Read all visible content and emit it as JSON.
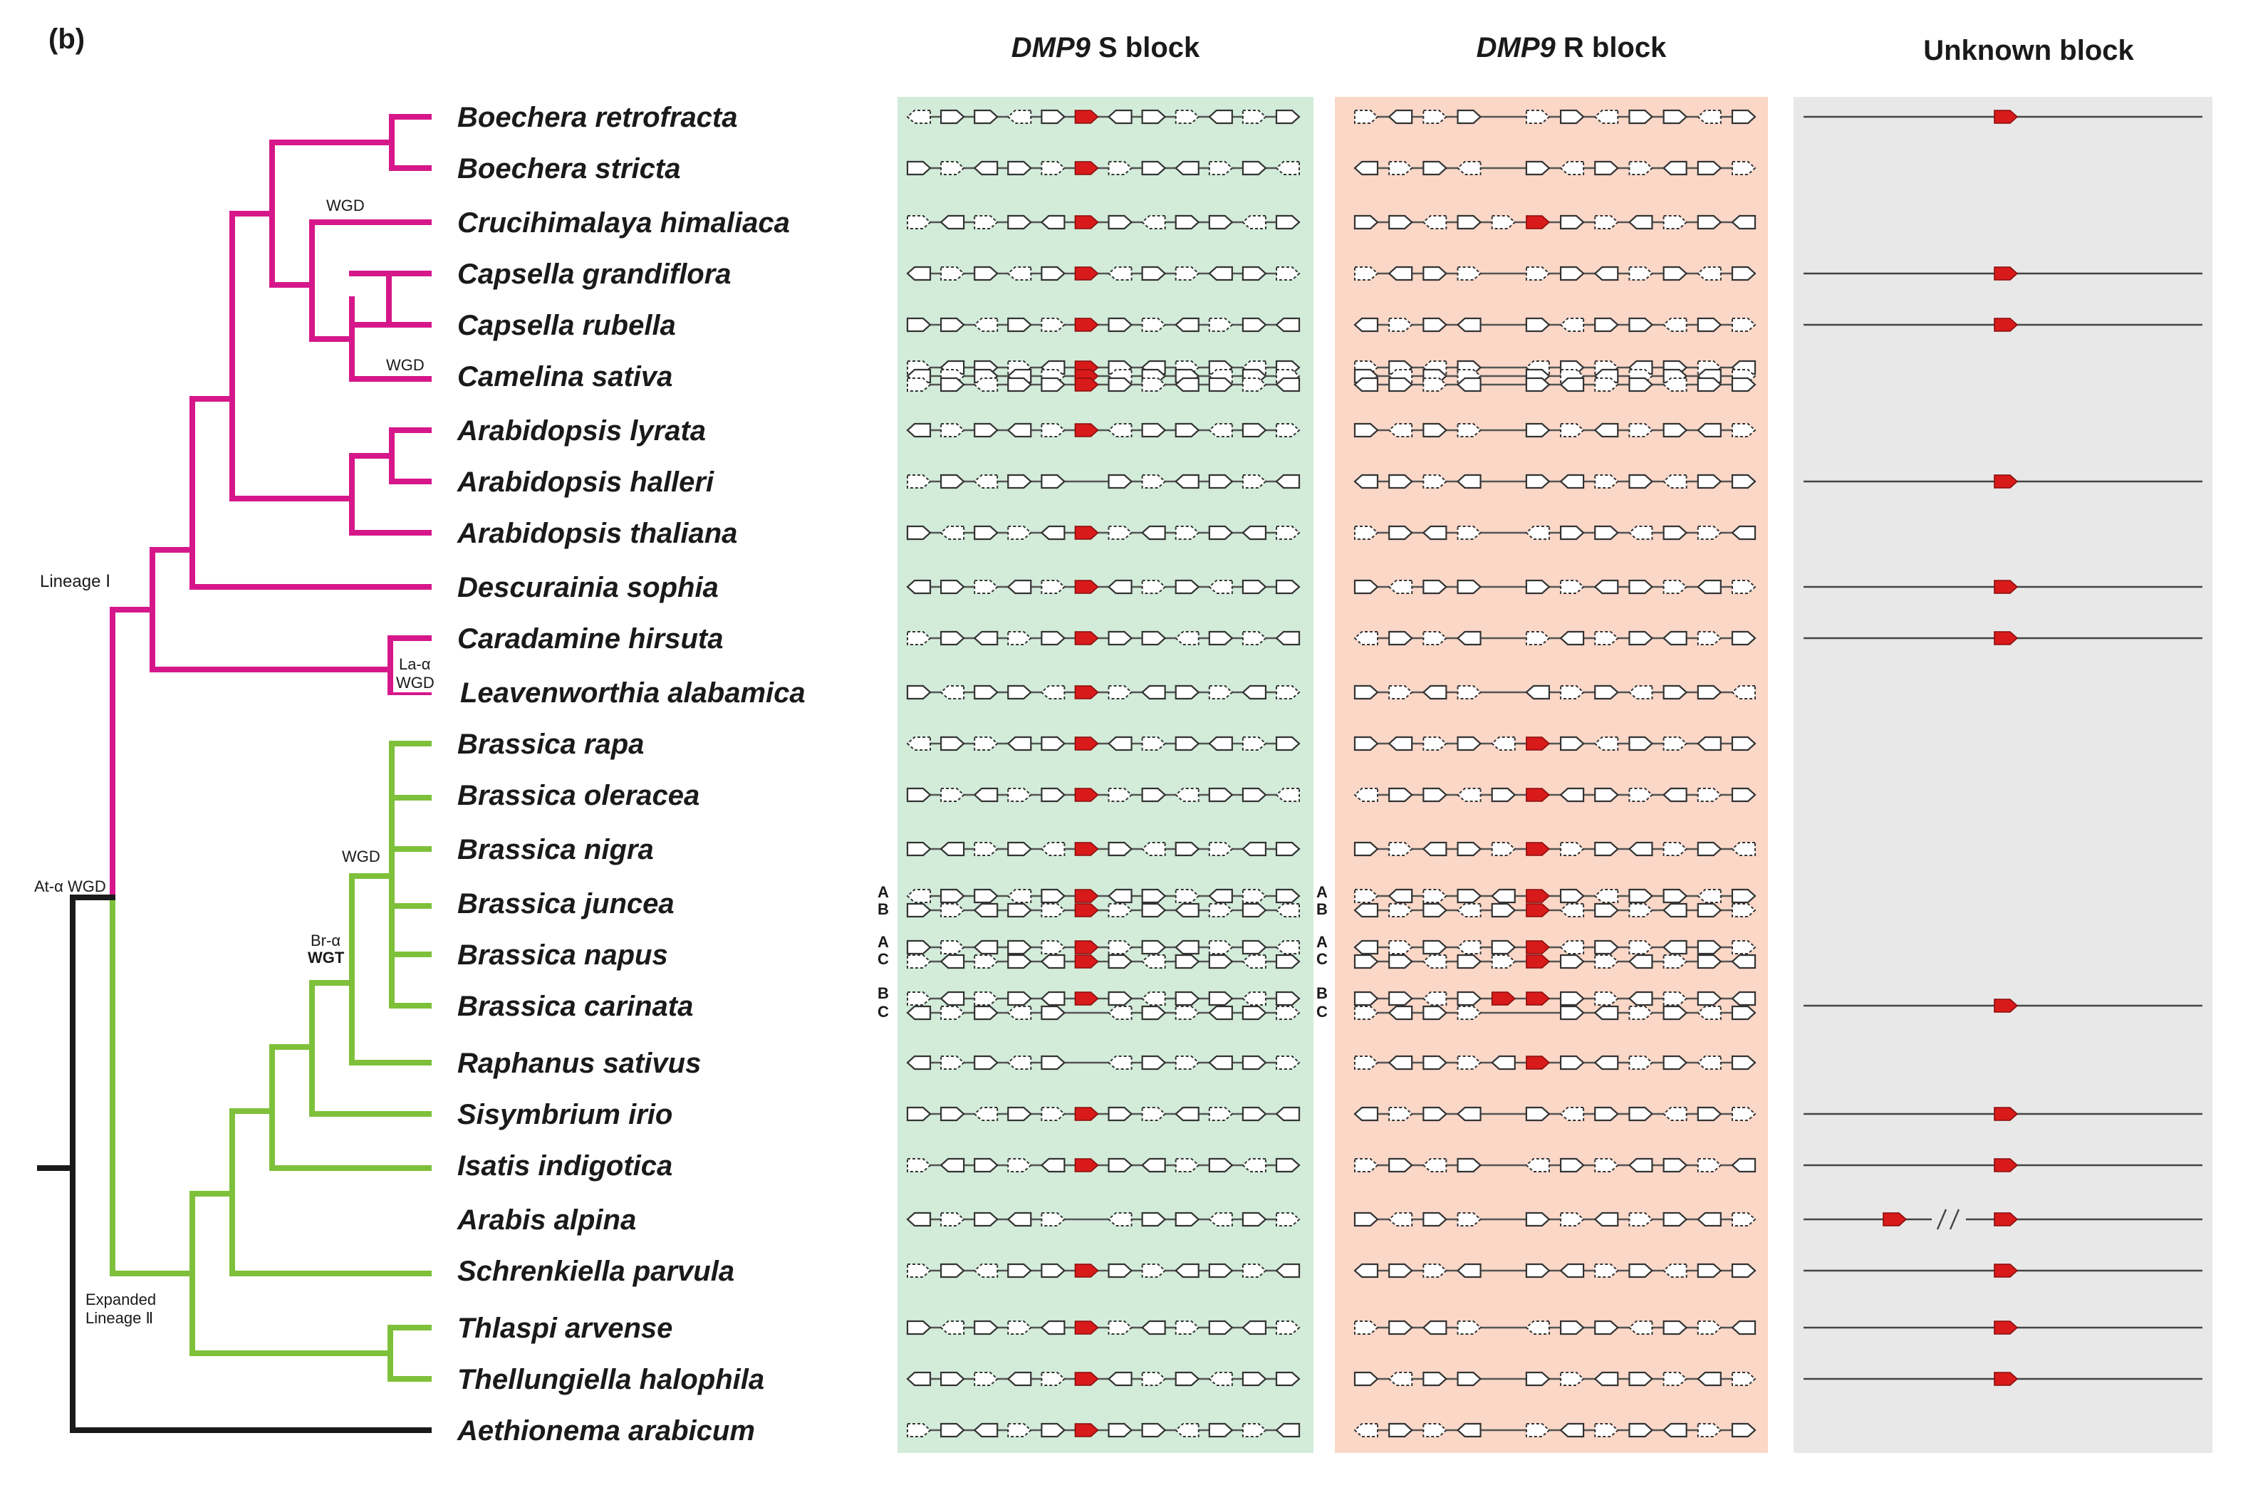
{
  "panel_label": "(b)",
  "headers": {
    "s_block_gene": "DMP9",
    "s_block_rest": " S block",
    "r_block_gene": "DMP9",
    "r_block_rest": " R block",
    "unknown": "Unknown block"
  },
  "tree_labels": {
    "wgd1": "WGD",
    "wgd2": "WGD",
    "lineage1": "Lineage Ⅰ",
    "la_line1": "La-α",
    "la_line2": "WGD",
    "wgd3": "WGD",
    "bra_line1": "Br-α",
    "bra_line2": "WGT",
    "at_alpha": "At-α WGD",
    "exp_line1": "Expanded",
    "exp_line2": "Lineage Ⅱ"
  },
  "subgenomes": {
    "juncea": [
      "A",
      "B"
    ],
    "napus": [
      "A",
      "C"
    ],
    "carinata": [
      "B",
      "C"
    ]
  },
  "colors": {
    "lineage1": "#d6178a",
    "lineage2": "#7ec03a",
    "root": "#1a1a1a",
    "gene_red": "#d81a1a",
    "s_bg": "#d2ecd9",
    "r_bg": "#fad7c7",
    "u_bg": "#e8e8e8"
  },
  "species": [
    {
      "name": "Boechera retrofracta",
      "s_dmp9": true,
      "r_dmp9": false,
      "unknown": "one"
    },
    {
      "name": "Boechera stricta",
      "s_dmp9": true,
      "r_dmp9": false,
      "unknown": "none"
    },
    {
      "name": "Crucihimalaya himaliaca",
      "s_dmp9": true,
      "r_dmp9": true,
      "unknown": "none"
    },
    {
      "name": "Capsella grandiflora",
      "s_dmp9": true,
      "r_dmp9": false,
      "unknown": "one"
    },
    {
      "name": "Capsella rubella",
      "s_dmp9": true,
      "r_dmp9": false,
      "unknown": "one"
    },
    {
      "name": "Camelina sativa",
      "s_dmp9": true,
      "r_dmp9": false,
      "unknown": "none"
    },
    {
      "name": "Arabidopsis lyrata",
      "s_dmp9": true,
      "r_dmp9": false,
      "unknown": "none"
    },
    {
      "name": "Arabidopsis halleri",
      "s_dmp9": false,
      "r_dmp9": false,
      "unknown": "one"
    },
    {
      "name": "Arabidopsis thaliana",
      "s_dmp9": true,
      "r_dmp9": false,
      "unknown": "none"
    },
    {
      "name": "Descurainia sophia",
      "s_dmp9": true,
      "r_dmp9": false,
      "unknown": "one"
    },
    {
      "name": "Caradamine hirsuta",
      "s_dmp9": true,
      "r_dmp9": false,
      "unknown": "one"
    },
    {
      "name": "Leavenworthia alabamica",
      "s_dmp9": true,
      "r_dmp9": false,
      "unknown": "none"
    },
    {
      "name": "Brassica rapa",
      "s_dmp9": true,
      "r_dmp9": true,
      "unknown": "none"
    },
    {
      "name": "Brassica oleracea",
      "s_dmp9": true,
      "r_dmp9": true,
      "unknown": "none"
    },
    {
      "name": "Brassica nigra",
      "s_dmp9": true,
      "r_dmp9": true,
      "unknown": "none"
    },
    {
      "name": "Brassica juncea",
      "s_dmp9": true,
      "r_dmp9": true,
      "unknown": "none"
    },
    {
      "name": "Brassica napus",
      "s_dmp9": true,
      "r_dmp9": true,
      "unknown": "none"
    },
    {
      "name": "Brassica carinata",
      "s_dmp9": true,
      "r_dmp9": true,
      "unknown": "one"
    },
    {
      "name": "Raphanus sativus",
      "s_dmp9": false,
      "r_dmp9": true,
      "unknown": "none"
    },
    {
      "name": "Sisymbrium irio",
      "s_dmp9": true,
      "r_dmp9": false,
      "unknown": "one"
    },
    {
      "name": "Isatis indigotica",
      "s_dmp9": true,
      "r_dmp9": false,
      "unknown": "one"
    },
    {
      "name": "Arabis alpina",
      "s_dmp9": false,
      "r_dmp9": false,
      "unknown": "two"
    },
    {
      "name": "Schrenkiella parvula",
      "s_dmp9": true,
      "r_dmp9": false,
      "unknown": "one"
    },
    {
      "name": "Thlaspi arvense",
      "s_dmp9": true,
      "r_dmp9": false,
      "unknown": "one"
    },
    {
      "name": "Thellungiella halophila",
      "s_dmp9": true,
      "r_dmp9": false,
      "unknown": "one"
    },
    {
      "name": "Aethionema arabicum",
      "s_dmp9": true,
      "r_dmp9": false,
      "unknown": "none"
    }
  ]
}
